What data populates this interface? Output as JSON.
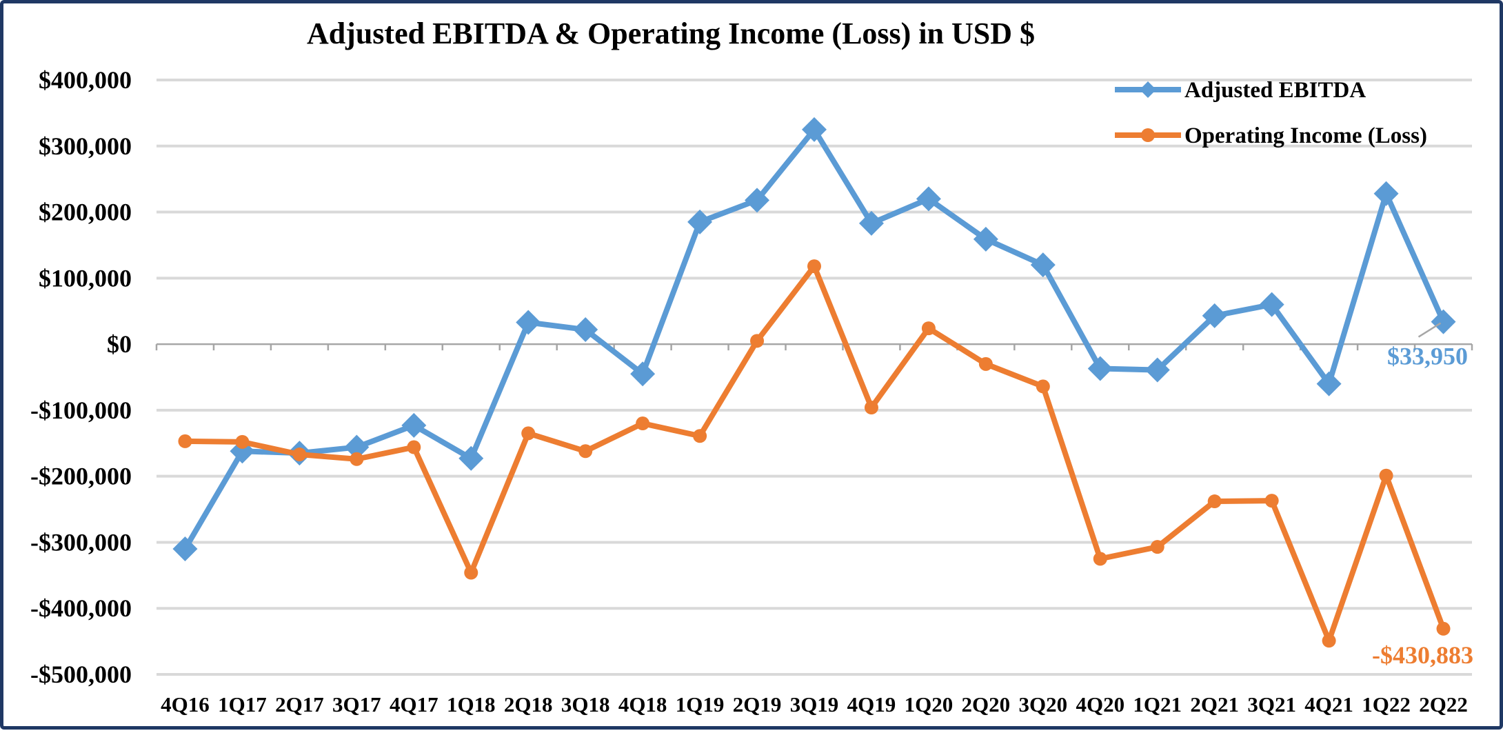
{
  "chart_data": {
    "type": "line",
    "title": "Adjusted EBITDA & Operating Income (Loss) in USD $",
    "xlabel": "",
    "ylabel": "",
    "ylim": [
      -500000,
      400000
    ],
    "yticks": [
      400000,
      300000,
      200000,
      100000,
      0,
      -100000,
      -200000,
      -300000,
      -400000,
      -500000
    ],
    "ytick_labels": [
      "$400,000",
      "$300,000",
      "$200,000",
      "$100,000",
      "$0",
      "-$100,000",
      "-$200,000",
      "-$300,000",
      "-$400,000",
      "-$500,000"
    ],
    "categories": [
      "4Q16",
      "1Q17",
      "2Q17",
      "3Q17",
      "4Q17",
      "1Q18",
      "2Q18",
      "3Q18",
      "4Q18",
      "1Q19",
      "2Q19",
      "3Q19",
      "4Q19",
      "1Q20",
      "2Q20",
      "3Q20",
      "4Q20",
      "1Q21",
      "2Q21",
      "3Q21",
      "4Q21",
      "1Q22",
      "2Q22"
    ],
    "grid": true,
    "legend": "top-right",
    "series": [
      {
        "name": "Adjusted EBITDA",
        "color": "#5b9bd5",
        "marker": "diamond",
        "values": [
          -310000,
          -162000,
          -165000,
          -156000,
          -123000,
          -173000,
          33000,
          22000,
          -45000,
          185000,
          218000,
          325000,
          183000,
          220000,
          159000,
          120000,
          -37000,
          -39000,
          43000,
          60000,
          -60000,
          228000,
          33950
        ]
      },
      {
        "name": "Operating Income (Loss)",
        "color": "#ed7d31",
        "marker": "circle",
        "values": [
          -147000,
          -148000,
          -167000,
          -174000,
          -156000,
          -346000,
          -135000,
          -162000,
          -120000,
          -139000,
          5000,
          118000,
          -96000,
          24000,
          -30000,
          -64000,
          -325000,
          -307000,
          -238000,
          -237000,
          -449000,
          -199000,
          -430883
        ]
      }
    ],
    "annotations": [
      {
        "series": 0,
        "index": 22,
        "text": "$33,950"
      },
      {
        "series": 1,
        "index": 22,
        "text": "-$430,883"
      }
    ]
  }
}
